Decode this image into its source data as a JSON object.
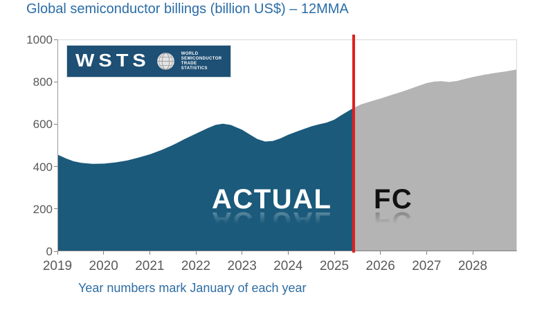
{
  "title": "Global semiconductor billings (billion US$) – 12MMA",
  "caption": "Year numbers mark January of each year",
  "logo": {
    "wordmark": "WSTS",
    "lines": [
      "WORLD",
      "SEMICONDUCTOR",
      "TRADE STATISTICS"
    ]
  },
  "labels": {
    "actual": "ACTUAL",
    "forecast": "FC"
  },
  "colors": {
    "title_text": "#2a6ca6",
    "caption_text": "#2e6da4",
    "axis_text": "#595959",
    "actual_area": "#1b5a7b",
    "forecast_area": "#b4b4b4",
    "divider": "#e02020",
    "logo_bg": "#1e4f74",
    "actual_label": "#ffffff",
    "forecast_label": "#111111"
  },
  "chart_data": {
    "type": "area",
    "title": "Global semiconductor billings (billion US$) – 12MMA",
    "xlabel": "Year numbers mark January of each year",
    "ylabel": "",
    "xlim": [
      2019,
      2028.96
    ],
    "ylim": [
      0,
      1000
    ],
    "x_ticks": [
      2019,
      2020,
      2021,
      2022,
      2023,
      2024,
      2025,
      2026,
      2027,
      2028
    ],
    "y_ticks": [
      0,
      200,
      400,
      600,
      800,
      1000
    ],
    "grid": false,
    "legend": "none",
    "forecast_divider_x": 2025.4,
    "series": [
      {
        "name": "ACTUAL",
        "color": "#1b5a7b",
        "points": [
          [
            2019.0,
            455
          ],
          [
            2019.17,
            438
          ],
          [
            2019.33,
            425
          ],
          [
            2019.5,
            417
          ],
          [
            2019.75,
            412
          ],
          [
            2020.0,
            413
          ],
          [
            2020.25,
            419
          ],
          [
            2020.5,
            428
          ],
          [
            2020.75,
            442
          ],
          [
            2021.0,
            458
          ],
          [
            2021.25,
            478
          ],
          [
            2021.5,
            502
          ],
          [
            2021.75,
            530
          ],
          [
            2022.0,
            556
          ],
          [
            2022.25,
            582
          ],
          [
            2022.42,
            597
          ],
          [
            2022.58,
            603
          ],
          [
            2022.75,
            597
          ],
          [
            2023.0,
            574
          ],
          [
            2023.17,
            551
          ],
          [
            2023.33,
            530
          ],
          [
            2023.5,
            518
          ],
          [
            2023.67,
            521
          ],
          [
            2023.83,
            533
          ],
          [
            2024.0,
            550
          ],
          [
            2024.25,
            571
          ],
          [
            2024.5,
            590
          ],
          [
            2024.67,
            600
          ],
          [
            2024.83,
            608
          ],
          [
            2025.0,
            622
          ],
          [
            2025.17,
            645
          ],
          [
            2025.4,
            675
          ]
        ]
      },
      {
        "name": "FC",
        "color": "#b4b4b4",
        "points": [
          [
            2025.4,
            675
          ],
          [
            2025.58,
            694
          ],
          [
            2025.75,
            706
          ],
          [
            2026.0,
            722
          ],
          [
            2026.25,
            740
          ],
          [
            2026.5,
            757
          ],
          [
            2026.75,
            776
          ],
          [
            2027.0,
            795
          ],
          [
            2027.17,
            803
          ],
          [
            2027.33,
            805
          ],
          [
            2027.5,
            801
          ],
          [
            2027.67,
            806
          ],
          [
            2027.83,
            815
          ],
          [
            2028.0,
            824
          ],
          [
            2028.25,
            835
          ],
          [
            2028.5,
            844
          ],
          [
            2028.75,
            852
          ],
          [
            2028.96,
            860
          ]
        ]
      }
    ]
  }
}
